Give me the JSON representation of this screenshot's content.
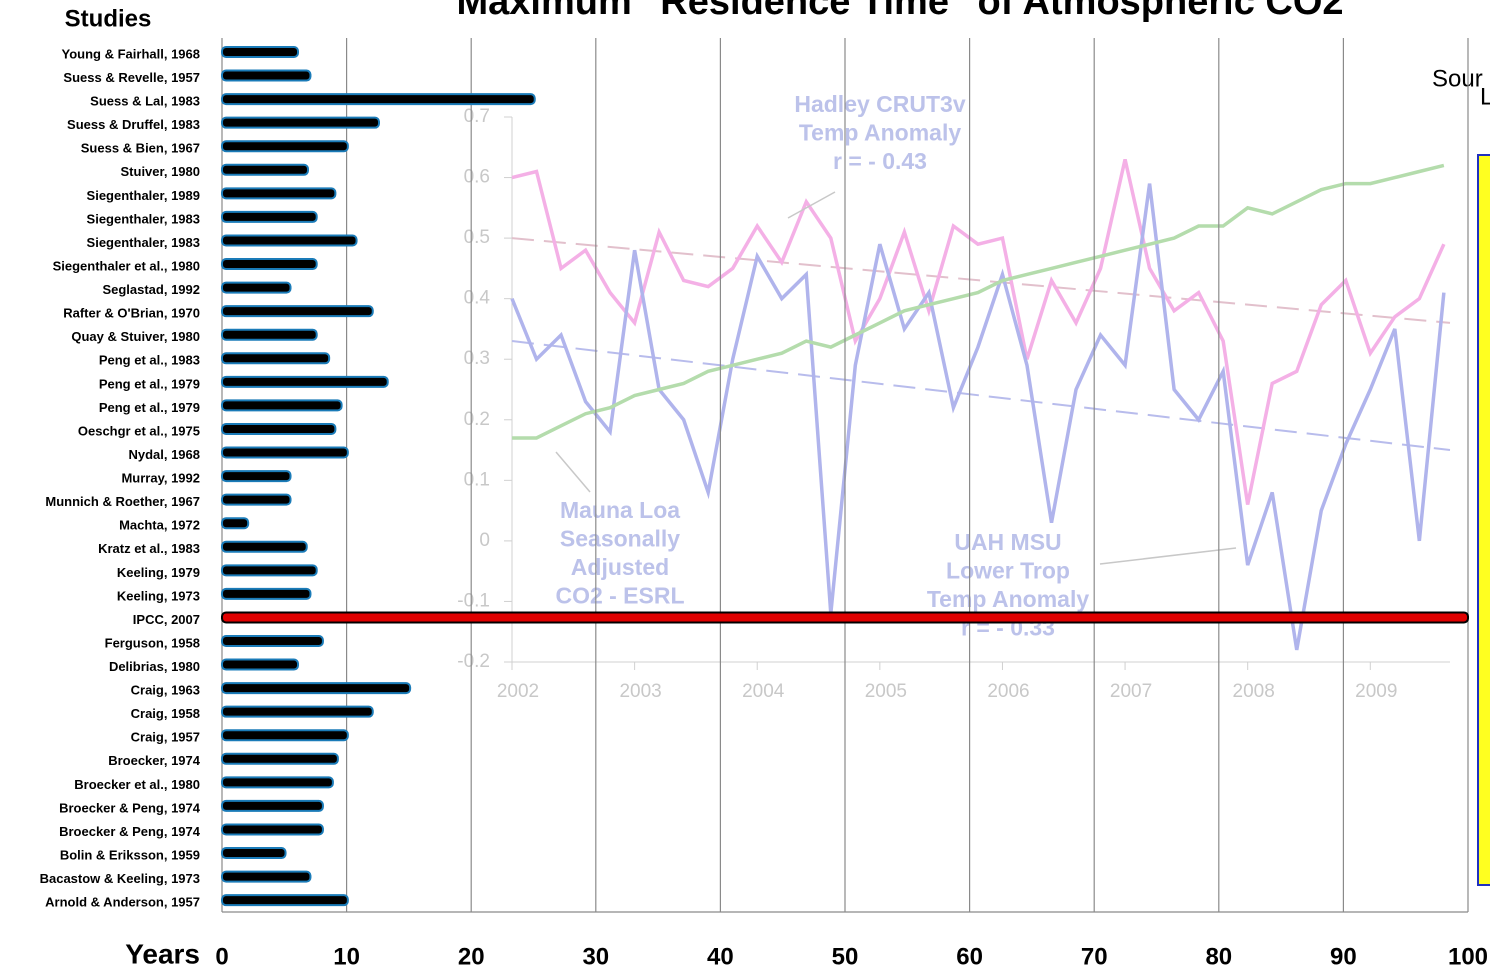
{
  "chart_data": [
    {
      "type": "bar",
      "orientation": "horizontal",
      "title": "Maximum \"Residence Time\" of Atmospheric CO2",
      "y_label": "Studies",
      "x_label": "Years",
      "categories": [
        "Young & Fairhall, 1968",
        "Suess & Revelle, 1957",
        "Suess & Lal, 1983",
        "Suess & Druffel, 1983",
        "Suess & Bien, 1967",
        "Stuiver, 1980",
        "Siegenthaler, 1989",
        "Siegenthaler, 1983",
        "Siegenthaler, 1983",
        "Siegenthaler et al., 1980",
        "Seglastad, 1992",
        "Rafter & O'Brian, 1970",
        "Quay & Stuiver, 1980",
        "Peng et al., 1983",
        "Peng et al., 1979",
        "Peng et al., 1979",
        "Oeschgr et al., 1975",
        "Nydal, 1968",
        "Murray, 1992",
        "Munnich & Roether, 1967",
        "Machta, 1972",
        "Kratz et al., 1983",
        "Keeling, 1979",
        "Keeling, 1973",
        "IPCC, 2007",
        "Ferguson, 1958",
        "Delibrias, 1980",
        "Craig, 1963",
        "Craig, 1958",
        "Craig, 1957",
        "Broecker, 1974",
        "Broecker et al., 1980",
        "Broecker & Peng, 1974",
        "Broecker & Peng, 1974",
        "Bolin & Eriksson, 1959",
        "Bacastow & Keeling, 1973",
        "Arnold & Anderson, 1957"
      ],
      "values": [
        6.1,
        7.1,
        25.1,
        12.6,
        10.1,
        6.9,
        9.1,
        7.6,
        10.8,
        7.6,
        5.5,
        12.1,
        7.6,
        8.6,
        13.3,
        9.6,
        9.1,
        10.1,
        5.5,
        5.5,
        2.1,
        6.8,
        7.6,
        7.1,
        100,
        8.1,
        6.1,
        15.1,
        12.1,
        10.1,
        9.3,
        8.9,
        8.1,
        8.1,
        5.1,
        7.1,
        10.1
      ],
      "color": "#000000",
      "highlight": {
        "index": 24,
        "color": "#e00000"
      },
      "xlim": [
        0,
        100
      ],
      "xticks": [
        0,
        10,
        20,
        30,
        40,
        50,
        60,
        70,
        80,
        90,
        100
      ],
      "grid": true
    },
    {
      "type": "line",
      "x": [
        2002,
        2002.2,
        2002.4,
        2002.6,
        2002.8,
        2003,
        2003.2,
        2003.4,
        2003.6,
        2003.8,
        2004,
        2004.2,
        2004.4,
        2004.6,
        2004.8,
        2005,
        2005.2,
        2005.4,
        2005.6,
        2005.8,
        2006,
        2006.2,
        2006.4,
        2006.6,
        2006.8,
        2007,
        2007.2,
        2007.4,
        2007.6,
        2007.8,
        2008,
        2008.2,
        2008.4,
        2008.6,
        2008.8,
        2009,
        2009.2,
        2009.4,
        2009.6
      ],
      "series": [
        {
          "color": "#f4b0e6",
          "values": [
            0.6,
            0.61,
            0.45,
            0.48,
            0.41,
            0.36,
            0.51,
            0.43,
            0.42,
            0.45,
            0.52,
            0.46,
            0.56,
            0.5,
            0.33,
            0.4,
            0.51,
            0.38,
            0.52,
            0.49,
            0.5,
            0.3,
            0.43,
            0.36,
            0.45,
            0.63,
            0.45,
            0.38,
            0.41,
            0.33,
            0.06,
            0.26,
            0.28,
            0.39,
            0.43,
            0.31,
            0.37,
            0.4,
            0.49
          ]
        },
        {
          "color": "#b0b4ec",
          "values": [
            0.4,
            0.3,
            0.34,
            0.23,
            0.18,
            0.48,
            0.25,
            0.2,
            0.08,
            0.3,
            0.47,
            0.4,
            0.44,
            -0.12,
            0.29,
            0.49,
            0.35,
            0.41,
            0.22,
            0.32,
            0.44,
            0.29,
            0.03,
            0.25,
            0.34,
            0.29,
            0.59,
            0.25,
            0.2,
            0.28,
            -0.04,
            0.08,
            -0.18,
            0.05,
            0.16,
            0.25,
            0.35,
            0.0,
            0.41
          ]
        },
        {
          "color": "#b4dcac",
          "values": [
            0.17,
            0.17,
            0.19,
            0.21,
            0.22,
            0.24,
            0.25,
            0.26,
            0.28,
            0.29,
            0.3,
            0.31,
            0.33,
            0.32,
            0.34,
            0.36,
            0.38,
            0.39,
            0.4,
            0.41,
            0.43,
            0.44,
            0.45,
            0.46,
            0.47,
            0.48,
            0.49,
            0.5,
            0.52,
            0.52,
            0.55,
            0.54,
            0.56,
            0.58,
            0.59,
            0.59,
            0.6,
            0.61,
            0.62
          ]
        }
      ],
      "trends": [
        {
          "color": "#e2c0cc",
          "x": [
            2002,
            2009.65
          ],
          "values": [
            0.5,
            0.36
          ]
        },
        {
          "color": "#b8bcec",
          "x": [
            2002,
            2009.65
          ],
          "values": [
            0.33,
            0.15
          ]
        }
      ],
      "annotations": [
        {
          "lines": [
            "Hadley CRUT3v",
            "Temp Anomaly",
            "r = - 0.43"
          ]
        },
        {
          "lines": [
            "Mauna Loa",
            "Seasonally",
            "Adjusted",
            "CO2 - ESRL"
          ]
        },
        {
          "lines": [
            "UAH MSU",
            "Lower Trop",
            "Temp Anomaly",
            "r = - 0.33"
          ]
        }
      ],
      "xlim": [
        2002,
        2009.65
      ],
      "xticks": [
        2002,
        2003,
        2004,
        2005,
        2006,
        2007,
        2008,
        2009
      ],
      "ylim": [
        -0.2,
        0.7
      ],
      "yticks": [
        -0.2,
        -0.1,
        0,
        0.1,
        0.2,
        0.3,
        0.4,
        0.5,
        0.6,
        0.7
      ]
    }
  ],
  "fragments": [
    "Sour",
    "L"
  ]
}
